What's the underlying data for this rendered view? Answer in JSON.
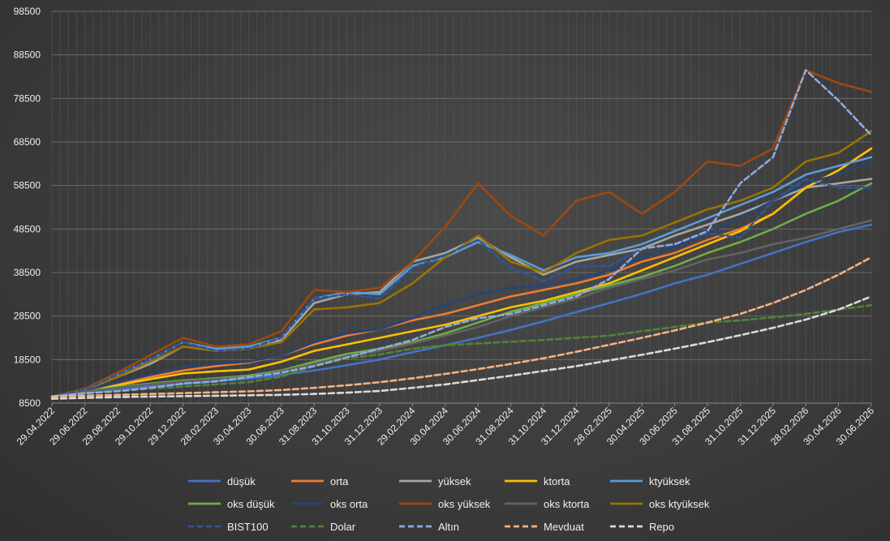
{
  "chart_data": {
    "type": "line",
    "title": "",
    "xlabel": "",
    "ylabel": "",
    "ylim": [
      8500,
      98500
    ],
    "yticks": [
      "8500",
      "18500",
      "28500",
      "38500",
      "48500",
      "58500",
      "68500",
      "78500",
      "88500",
      "98500"
    ],
    "xticks": [
      "29.04.2022",
      "29.06.2022",
      "29.08.2022",
      "29.10.2022",
      "29.12.2022",
      "28.02.2023",
      "30.04.2023",
      "30.06.2023",
      "31.08.2023",
      "31.10.2023",
      "31.12.2023",
      "29.02.2024",
      "30.04.2024",
      "30.06.2024",
      "31.08.2024",
      "31.10.2024",
      "31.12.2024",
      "28.02.2025",
      "30.04.2025",
      "30.06.2025",
      "31.08.2025",
      "31.10.2025",
      "31.12.2025",
      "28.02.2026",
      "30.04.2026",
      "30.06.2026"
    ],
    "grid": true,
    "legend_position": "bottom",
    "series": [
      {
        "name": "düşük",
        "color": "#4472c4",
        "dash": "solid",
        "values": [
          10000,
          10800,
          11600,
          12300,
          12900,
          13500,
          14100,
          15000,
          16000,
          17200,
          18500,
          20200,
          21800,
          23500,
          25300,
          27300,
          29400,
          31500,
          33600,
          36000,
          38000,
          40500,
          43000,
          45500,
          47800,
          49500
        ]
      },
      {
        "name": "orta",
        "color": "#ed7d31",
        "dash": "solid",
        "values": [
          10000,
          11200,
          12800,
          14500,
          16000,
          17000,
          17800,
          19500,
          22000,
          24000,
          25500,
          27500,
          29000,
          31000,
          33000,
          34500,
          36000,
          38000,
          41000,
          43000,
          46000,
          48500,
          52000,
          58000,
          62000,
          67000
        ]
      },
      {
        "name": "yüksek",
        "color": "#a5a5a5",
        "dash": "solid",
        "values": [
          10000,
          11500,
          14500,
          17500,
          21500,
          20500,
          21000,
          23000,
          31500,
          33500,
          34000,
          41000,
          43000,
          46500,
          42000,
          38000,
          41000,
          42500,
          44000,
          47000,
          49500,
          52000,
          55000,
          58000,
          59000,
          60000
        ]
      },
      {
        "name": "ktorta",
        "color": "#ffc000",
        "dash": "solid",
        "values": [
          10000,
          11300,
          12600,
          14000,
          15300,
          15800,
          16200,
          18000,
          20500,
          22000,
          23500,
          25000,
          26500,
          28500,
          30500,
          32000,
          34000,
          36000,
          39000,
          42000,
          45000,
          48000,
          52000,
          58000,
          62000,
          67000
        ]
      },
      {
        "name": "ktyüksek",
        "color": "#5b9bd5",
        "dash": "solid",
        "values": [
          10000,
          11700,
          15000,
          18500,
          22500,
          21000,
          21500,
          23500,
          32500,
          34000,
          33500,
          40000,
          42000,
          45500,
          42500,
          39000,
          42000,
          43000,
          45000,
          48000,
          51000,
          54000,
          57000,
          61000,
          63000,
          65000
        ]
      },
      {
        "name": "oks düşük",
        "color": "#70ad47",
        "dash": "solid",
        "values": [
          10000,
          11200,
          12200,
          13000,
          13700,
          14200,
          14800,
          16000,
          18000,
          19800,
          21000,
          22500,
          24500,
          27000,
          29500,
          31500,
          33500,
          35500,
          37500,
          40000,
          43000,
          45500,
          48500,
          52000,
          55000,
          59000
        ]
      },
      {
        "name": "oks orta",
        "color": "#264478",
        "dash": "solid",
        "values": [
          10000,
          11400,
          13200,
          15000,
          16800,
          17500,
          18000,
          19500,
          22500,
          24500,
          25500,
          28000,
          31000,
          33500,
          35000,
          35500,
          37000,
          39000,
          42000,
          44500,
          47500,
          51000,
          55000,
          59000,
          61000,
          64000
        ]
      },
      {
        "name": "oks yüksek",
        "color": "#9e480e",
        "dash": "solid",
        "values": [
          10000,
          11800,
          15500,
          19500,
          23500,
          21500,
          22000,
          25000,
          34500,
          34000,
          35000,
          41000,
          49000,
          59000,
          51500,
          47000,
          55000,
          57000,
          52000,
          57000,
          64000,
          63000,
          67000,
          85000,
          82000,
          80000
        ]
      },
      {
        "name": "oks ktorta",
        "color": "#636363",
        "dash": "solid",
        "values": [
          10000,
          11000,
          12000,
          12800,
          13500,
          14000,
          14500,
          15800,
          17500,
          19200,
          20500,
          22200,
          24000,
          26000,
          28500,
          30500,
          32500,
          35000,
          37000,
          39000,
          41500,
          43000,
          45000,
          46500,
          48500,
          50500
        ]
      },
      {
        "name": "oks ktyüksek",
        "color": "#997300",
        "dash": "solid",
        "values": [
          10000,
          11500,
          14500,
          18000,
          21500,
          20500,
          21000,
          22500,
          30000,
          30500,
          31500,
          36000,
          42000,
          47000,
          41000,
          38500,
          43000,
          46000,
          47000,
          50000,
          53000,
          55000,
          58000,
          64000,
          66000,
          71000
        ]
      },
      {
        "name": "BIST100",
        "color": "#2f5597",
        "dash": "dashed",
        "values": [
          10000,
          11600,
          15000,
          18500,
          22500,
          20500,
          21000,
          23500,
          32500,
          33500,
          32500,
          39500,
          42500,
          46000,
          39500,
          36500,
          40000,
          40000,
          44000,
          45000,
          47500,
          46500,
          55000,
          60000,
          58000,
          58000
        ]
      },
      {
        "name": "Dolar",
        "color": "#548235",
        "dash": "dashed",
        "values": [
          10000,
          10700,
          11300,
          11800,
          12300,
          12800,
          13300,
          14600,
          17000,
          18800,
          19700,
          21000,
          21800,
          22200,
          22600,
          23000,
          23500,
          24000,
          25000,
          26000,
          27000,
          27500,
          28200,
          29000,
          30000,
          31000
        ]
      },
      {
        "name": "Altın",
        "color": "#8faadc",
        "dash": "dashed",
        "values": [
          10000,
          10800,
          11200,
          12000,
          13000,
          13500,
          14500,
          15500,
          17000,
          19000,
          21000,
          23000,
          26000,
          28000,
          29000,
          31000,
          33000,
          37000,
          44000,
          45000,
          48000,
          59000,
          65000,
          85000,
          78000,
          70000
        ]
      },
      {
        "name": "Mevduat",
        "color": "#f4b183",
        "dash": "dashed",
        "values": [
          10000,
          10200,
          10400,
          10600,
          10800,
          11000,
          11200,
          11500,
          12000,
          12600,
          13300,
          14200,
          15200,
          16300,
          17500,
          18800,
          20300,
          21900,
          23500,
          25200,
          27000,
          29000,
          31500,
          34500,
          38000,
          42000
        ]
      },
      {
        "name": "Repo",
        "color": "#d9d9d9",
        "dash": "dashed",
        "values": [
          9500,
          9700,
          9900,
          10000,
          10100,
          10200,
          10300,
          10400,
          10600,
          10900,
          11300,
          12000,
          12800,
          13800,
          14800,
          15900,
          17000,
          18300,
          19600,
          21000,
          22500,
          24100,
          25800,
          27700,
          30000,
          33000
        ]
      }
    ]
  }
}
